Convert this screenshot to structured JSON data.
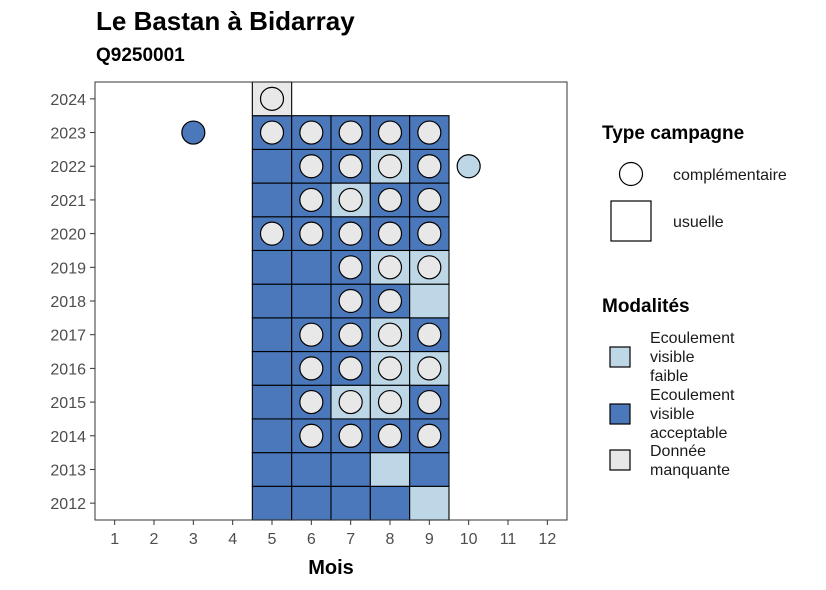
{
  "chart_data": {
    "type": "heatmap",
    "title": "Le Bastan à Bidarray",
    "subtitle": "Q9250001",
    "xlabel": "Mois",
    "ylabel": "",
    "x_ticks": [
      1,
      2,
      3,
      4,
      5,
      6,
      7,
      8,
      9,
      10,
      11,
      12
    ],
    "y_ticks": [
      2012,
      2013,
      2014,
      2015,
      2016,
      2017,
      2018,
      2019,
      2020,
      2021,
      2022,
      2023,
      2024
    ],
    "xlim": [
      0.5,
      12.5
    ],
    "ylim": [
      2011.5,
      2024.5
    ],
    "grid": false,
    "legend_placement": "right",
    "colors": {
      "faible": "#bdd7e7",
      "acceptable": "#4a78ba",
      "manquante": "#e8e8e8"
    },
    "legend": {
      "type_title": "Type campagne",
      "type_entries": [
        {
          "key": "complementaire",
          "label": "complémentaire"
        },
        {
          "key": "usuelle",
          "label": "usuelle"
        }
      ],
      "mod_title": "Modalités",
      "mod_entries": [
        {
          "key": "faible",
          "label_lines": [
            "Ecoulement",
            "visible",
            "faible"
          ]
        },
        {
          "key": "acceptable",
          "label_lines": [
            "Ecoulement",
            "visible",
            "acceptable"
          ]
        },
        {
          "key": "manquante",
          "label_lines": [
            "Donnée",
            "manquante"
          ]
        }
      ]
    },
    "usuelle": [
      {
        "year": 2012,
        "month": 5,
        "mod": "acceptable"
      },
      {
        "year": 2012,
        "month": 6,
        "mod": "acceptable"
      },
      {
        "year": 2012,
        "month": 7,
        "mod": "acceptable"
      },
      {
        "year": 2012,
        "month": 8,
        "mod": "acceptable"
      },
      {
        "year": 2012,
        "month": 9,
        "mod": "faible"
      },
      {
        "year": 2013,
        "month": 5,
        "mod": "acceptable"
      },
      {
        "year": 2013,
        "month": 6,
        "mod": "acceptable"
      },
      {
        "year": 2013,
        "month": 7,
        "mod": "acceptable"
      },
      {
        "year": 2013,
        "month": 8,
        "mod": "faible"
      },
      {
        "year": 2013,
        "month": 9,
        "mod": "acceptable"
      },
      {
        "year": 2014,
        "month": 5,
        "mod": "acceptable"
      },
      {
        "year": 2014,
        "month": 6,
        "mod": "acceptable"
      },
      {
        "year": 2014,
        "month": 7,
        "mod": "acceptable"
      },
      {
        "year": 2014,
        "month": 8,
        "mod": "acceptable"
      },
      {
        "year": 2014,
        "month": 9,
        "mod": "acceptable"
      },
      {
        "year": 2015,
        "month": 5,
        "mod": "acceptable"
      },
      {
        "year": 2015,
        "month": 6,
        "mod": "acceptable"
      },
      {
        "year": 2015,
        "month": 7,
        "mod": "faible"
      },
      {
        "year": 2015,
        "month": 8,
        "mod": "faible"
      },
      {
        "year": 2015,
        "month": 9,
        "mod": "acceptable"
      },
      {
        "year": 2016,
        "month": 5,
        "mod": "acceptable"
      },
      {
        "year": 2016,
        "month": 6,
        "mod": "acceptable"
      },
      {
        "year": 2016,
        "month": 7,
        "mod": "acceptable"
      },
      {
        "year": 2016,
        "month": 8,
        "mod": "faible"
      },
      {
        "year": 2016,
        "month": 9,
        "mod": "faible"
      },
      {
        "year": 2017,
        "month": 5,
        "mod": "acceptable"
      },
      {
        "year": 2017,
        "month": 6,
        "mod": "acceptable"
      },
      {
        "year": 2017,
        "month": 7,
        "mod": "acceptable"
      },
      {
        "year": 2017,
        "month": 8,
        "mod": "faible"
      },
      {
        "year": 2017,
        "month": 9,
        "mod": "acceptable"
      },
      {
        "year": 2018,
        "month": 5,
        "mod": "acceptable"
      },
      {
        "year": 2018,
        "month": 6,
        "mod": "acceptable"
      },
      {
        "year": 2018,
        "month": 7,
        "mod": "acceptable"
      },
      {
        "year": 2018,
        "month": 8,
        "mod": "acceptable"
      },
      {
        "year": 2018,
        "month": 9,
        "mod": "faible"
      },
      {
        "year": 2019,
        "month": 5,
        "mod": "acceptable"
      },
      {
        "year": 2019,
        "month": 6,
        "mod": "acceptable"
      },
      {
        "year": 2019,
        "month": 7,
        "mod": "acceptable"
      },
      {
        "year": 2019,
        "month": 8,
        "mod": "faible"
      },
      {
        "year": 2019,
        "month": 9,
        "mod": "faible"
      },
      {
        "year": 2020,
        "month": 5,
        "mod": "acceptable"
      },
      {
        "year": 2020,
        "month": 6,
        "mod": "acceptable"
      },
      {
        "year": 2020,
        "month": 7,
        "mod": "acceptable"
      },
      {
        "year": 2020,
        "month": 8,
        "mod": "acceptable"
      },
      {
        "year": 2020,
        "month": 9,
        "mod": "acceptable"
      },
      {
        "year": 2021,
        "month": 5,
        "mod": "acceptable"
      },
      {
        "year": 2021,
        "month": 6,
        "mod": "acceptable"
      },
      {
        "year": 2021,
        "month": 7,
        "mod": "faible"
      },
      {
        "year": 2021,
        "month": 8,
        "mod": "acceptable"
      },
      {
        "year": 2021,
        "month": 9,
        "mod": "acceptable"
      },
      {
        "year": 2022,
        "month": 5,
        "mod": "acceptable"
      },
      {
        "year": 2022,
        "month": 6,
        "mod": "acceptable"
      },
      {
        "year": 2022,
        "month": 7,
        "mod": "acceptable"
      },
      {
        "year": 2022,
        "month": 8,
        "mod": "faible"
      },
      {
        "year": 2022,
        "month": 9,
        "mod": "acceptable"
      },
      {
        "year": 2023,
        "month": 5,
        "mod": "acceptable"
      },
      {
        "year": 2023,
        "month": 6,
        "mod": "acceptable"
      },
      {
        "year": 2023,
        "month": 7,
        "mod": "acceptable"
      },
      {
        "year": 2023,
        "month": 8,
        "mod": "acceptable"
      },
      {
        "year": 2023,
        "month": 9,
        "mod": "acceptable"
      },
      {
        "year": 2024,
        "month": 5,
        "mod": "manquante"
      }
    ],
    "complementaire": [
      {
        "year": 2014,
        "month": 6,
        "mod": "manquante"
      },
      {
        "year": 2014,
        "month": 7,
        "mod": "manquante"
      },
      {
        "year": 2014,
        "month": 8,
        "mod": "manquante"
      },
      {
        "year": 2014,
        "month": 9,
        "mod": "manquante"
      },
      {
        "year": 2015,
        "month": 6,
        "mod": "manquante"
      },
      {
        "year": 2015,
        "month": 7,
        "mod": "manquante"
      },
      {
        "year": 2015,
        "month": 8,
        "mod": "manquante"
      },
      {
        "year": 2015,
        "month": 9,
        "mod": "manquante"
      },
      {
        "year": 2016,
        "month": 6,
        "mod": "manquante"
      },
      {
        "year": 2016,
        "month": 7,
        "mod": "manquante"
      },
      {
        "year": 2016,
        "month": 8,
        "mod": "manquante"
      },
      {
        "year": 2016,
        "month": 9,
        "mod": "manquante"
      },
      {
        "year": 2017,
        "month": 6,
        "mod": "manquante"
      },
      {
        "year": 2017,
        "month": 7,
        "mod": "manquante"
      },
      {
        "year": 2017,
        "month": 8,
        "mod": "manquante"
      },
      {
        "year": 2017,
        "month": 9,
        "mod": "manquante"
      },
      {
        "year": 2018,
        "month": 7,
        "mod": "manquante"
      },
      {
        "year": 2018,
        "month": 8,
        "mod": "manquante"
      },
      {
        "year": 2019,
        "month": 7,
        "mod": "manquante"
      },
      {
        "year": 2019,
        "month": 8,
        "mod": "manquante"
      },
      {
        "year": 2019,
        "month": 9,
        "mod": "manquante"
      },
      {
        "year": 2020,
        "month": 5,
        "mod": "manquante"
      },
      {
        "year": 2020,
        "month": 6,
        "mod": "manquante"
      },
      {
        "year": 2020,
        "month": 7,
        "mod": "manquante"
      },
      {
        "year": 2020,
        "month": 8,
        "mod": "manquante"
      },
      {
        "year": 2020,
        "month": 9,
        "mod": "manquante"
      },
      {
        "year": 2021,
        "month": 6,
        "mod": "manquante"
      },
      {
        "year": 2021,
        "month": 7,
        "mod": "manquante"
      },
      {
        "year": 2021,
        "month": 8,
        "mod": "manquante"
      },
      {
        "year": 2021,
        "month": 9,
        "mod": "manquante"
      },
      {
        "year": 2022,
        "month": 6,
        "mod": "manquante"
      },
      {
        "year": 2022,
        "month": 7,
        "mod": "manquante"
      },
      {
        "year": 2022,
        "month": 8,
        "mod": "manquante"
      },
      {
        "year": 2022,
        "month": 9,
        "mod": "manquante"
      },
      {
        "year": 2022,
        "month": 10,
        "mod": "faible"
      },
      {
        "year": 2023,
        "month": 3,
        "mod": "acceptable"
      },
      {
        "year": 2023,
        "month": 5,
        "mod": "manquante"
      },
      {
        "year": 2023,
        "month": 6,
        "mod": "manquante"
      },
      {
        "year": 2023,
        "month": 7,
        "mod": "manquante"
      },
      {
        "year": 2023,
        "month": 8,
        "mod": "manquante"
      },
      {
        "year": 2023,
        "month": 9,
        "mod": "manquante"
      },
      {
        "year": 2024,
        "month": 5,
        "mod": "manquante"
      }
    ]
  }
}
